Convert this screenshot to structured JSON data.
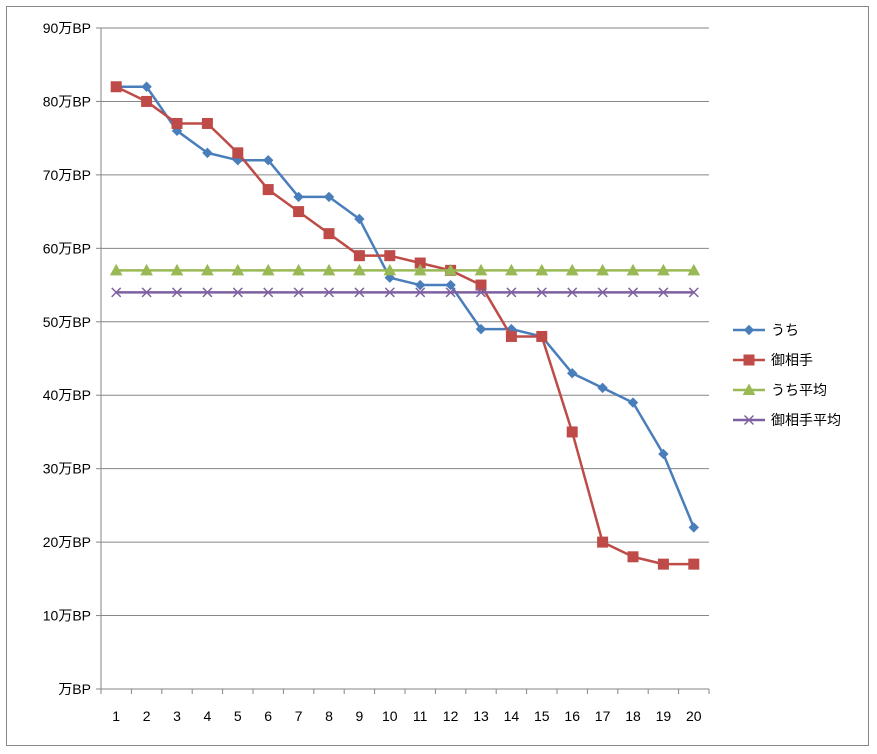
{
  "chart_data": {
    "type": "line",
    "title": "",
    "xlabel": "",
    "ylabel": "",
    "x": [
      1,
      2,
      3,
      4,
      5,
      6,
      7,
      8,
      9,
      10,
      11,
      12,
      13,
      14,
      15,
      16,
      17,
      18,
      19,
      20
    ],
    "y_ticks": [
      {
        "value": 0,
        "label": "万BP"
      },
      {
        "value": 10,
        "label": "10万BP"
      },
      {
        "value": 20,
        "label": "20万BP"
      },
      {
        "value": 30,
        "label": "30万BP"
      },
      {
        "value": 40,
        "label": "40万BP"
      },
      {
        "value": 50,
        "label": "50万BP"
      },
      {
        "value": 60,
        "label": "60万BP"
      },
      {
        "value": 70,
        "label": "70万BP"
      },
      {
        "value": 80,
        "label": "80万BP"
      },
      {
        "value": 90,
        "label": "90万BP"
      }
    ],
    "ylim": [
      0,
      90
    ],
    "grid": true,
    "legend_position": "right",
    "series": [
      {
        "name": "うち",
        "color": "#4a7ebb",
        "marker": "diamond",
        "values": [
          82,
          82,
          76,
          73,
          72,
          72,
          67,
          67,
          64,
          56,
          55,
          55,
          49,
          49,
          48,
          43,
          41,
          39,
          32,
          22
        ]
      },
      {
        "name": "御相手",
        "color": "#be4b48",
        "marker": "square",
        "values": [
          82,
          80,
          77,
          77,
          73,
          68,
          65,
          62,
          59,
          59,
          58,
          57,
          55,
          48,
          48,
          35,
          20,
          18,
          17,
          17
        ]
      },
      {
        "name": "うち平均",
        "color": "#98b954",
        "marker": "triangle",
        "values": [
          57,
          57,
          57,
          57,
          57,
          57,
          57,
          57,
          57,
          57,
          57,
          57,
          57,
          57,
          57,
          57,
          57,
          57,
          57,
          57
        ]
      },
      {
        "name": "御相手平均",
        "color": "#7d60a0",
        "marker": "x",
        "values": [
          54,
          54,
          54,
          54,
          54,
          54,
          54,
          54,
          54,
          54,
          54,
          54,
          54,
          54,
          54,
          54,
          54,
          54,
          54,
          54
        ]
      }
    ]
  }
}
